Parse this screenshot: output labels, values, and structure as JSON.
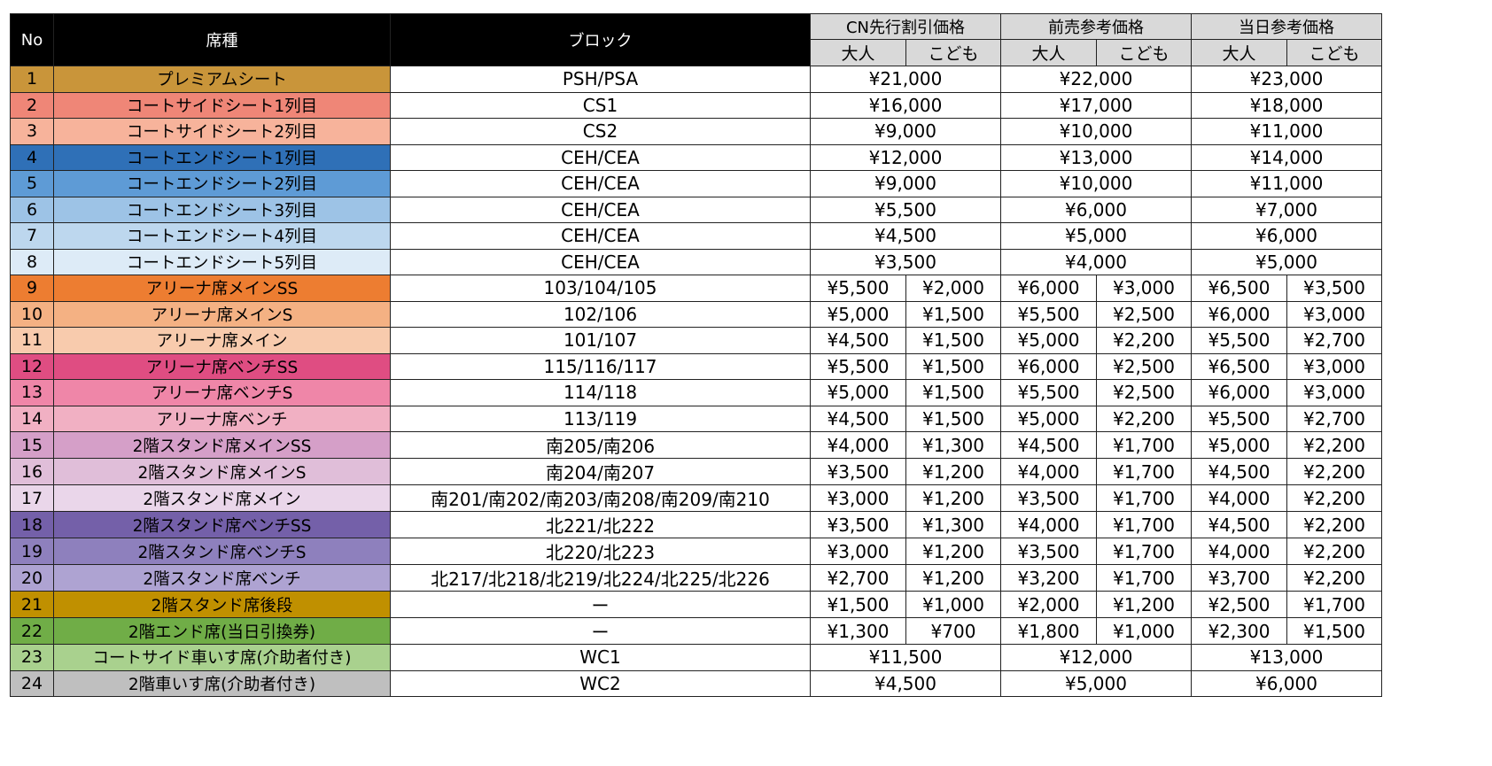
{
  "headers": {
    "no": "No",
    "seat": "席種",
    "block": "ブロック",
    "groups": [
      "CN先行割引価格",
      "前売参考価格",
      "当日参考価格"
    ],
    "adult": "大人",
    "child": "こども"
  },
  "rows": [
    {
      "no": "1",
      "seat": "プレミアムシート",
      "color": "#c9953a",
      "block": "PSH/PSA",
      "cn": {
        "price": "¥21,000"
      },
      "adv": {
        "price": "¥22,000"
      },
      "day": {
        "price": "¥23,000"
      }
    },
    {
      "no": "2",
      "seat": "コートサイドシート1列目",
      "color": "#ef8677",
      "block": "CS1",
      "cn": {
        "price": "¥16,000"
      },
      "adv": {
        "price": "¥17,000"
      },
      "day": {
        "price": "¥18,000"
      }
    },
    {
      "no": "3",
      "seat": "コートサイドシート2列目",
      "color": "#f7b39b",
      "block": "CS2",
      "cn": {
        "price": "¥9,000"
      },
      "adv": {
        "price": "¥10,000"
      },
      "day": {
        "price": "¥11,000"
      }
    },
    {
      "no": "4",
      "seat": "コートエンドシート1列目",
      "color": "#2f70b7",
      "block": "CEH/CEA",
      "cn": {
        "price": "¥12,000"
      },
      "adv": {
        "price": "¥13,000"
      },
      "day": {
        "price": "¥14,000"
      }
    },
    {
      "no": "5",
      "seat": "コートエンドシート2列目",
      "color": "#5e9bd6",
      "block": "CEH/CEA",
      "cn": {
        "price": "¥9,000"
      },
      "adv": {
        "price": "¥10,000"
      },
      "day": {
        "price": "¥11,000"
      }
    },
    {
      "no": "6",
      "seat": "コートエンドシート3列目",
      "color": "#9dc3e6",
      "block": "CEH/CEA",
      "cn": {
        "price": "¥5,500"
      },
      "adv": {
        "price": "¥6,000"
      },
      "day": {
        "price": "¥7,000"
      }
    },
    {
      "no": "7",
      "seat": "コートエンドシート4列目",
      "color": "#bdd7ee",
      "block": "CEH/CEA",
      "cn": {
        "price": "¥4,500"
      },
      "adv": {
        "price": "¥5,000"
      },
      "day": {
        "price": "¥6,000"
      }
    },
    {
      "no": "8",
      "seat": "コートエンドシート5列目",
      "color": "#ddebf7",
      "block": "CEH/CEA",
      "cn": {
        "price": "¥3,500"
      },
      "adv": {
        "price": "¥4,000"
      },
      "day": {
        "price": "¥5,000"
      }
    },
    {
      "no": "9",
      "seat": "アリーナ席メインSS",
      "color": "#ed7d31",
      "block": "103/104/105",
      "cn": {
        "adult": "¥5,500",
        "child": "¥2,000"
      },
      "adv": {
        "adult": "¥6,000",
        "child": "¥3,000"
      },
      "day": {
        "adult": "¥6,500",
        "child": "¥3,500"
      }
    },
    {
      "no": "10",
      "seat": "アリーナ席メインS",
      "color": "#f4b183",
      "block": "102/106",
      "cn": {
        "adult": "¥5,000",
        "child": "¥1,500"
      },
      "adv": {
        "adult": "¥5,500",
        "child": "¥2,500"
      },
      "day": {
        "adult": "¥6,000",
        "child": "¥3,000"
      }
    },
    {
      "no": "11",
      "seat": "アリーナ席メイン",
      "color": "#f8cbad",
      "block": "101/107",
      "cn": {
        "adult": "¥4,500",
        "child": "¥1,500"
      },
      "adv": {
        "adult": "¥5,000",
        "child": "¥2,200"
      },
      "day": {
        "adult": "¥5,500",
        "child": "¥2,700"
      }
    },
    {
      "no": "12",
      "seat": "アリーナ席ベンチSS",
      "color": "#df4d82",
      "block": "115/116/117",
      "cn": {
        "adult": "¥5,500",
        "child": "¥1,500"
      },
      "adv": {
        "adult": "¥6,000",
        "child": "¥2,500"
      },
      "day": {
        "adult": "¥6,500",
        "child": "¥3,000"
      }
    },
    {
      "no": "13",
      "seat": "アリーナ席ベンチS",
      "color": "#ef86a8",
      "block": "114/118",
      "cn": {
        "adult": "¥5,000",
        "child": "¥1,500"
      },
      "adv": {
        "adult": "¥5,500",
        "child": "¥2,500"
      },
      "day": {
        "adult": "¥6,000",
        "child": "¥3,000"
      }
    },
    {
      "no": "14",
      "seat": "アリーナ席ベンチ",
      "color": "#f1b0c3",
      "block": "113/119",
      "cn": {
        "adult": "¥4,500",
        "child": "¥1,500"
      },
      "adv": {
        "adult": "¥5,000",
        "child": "¥2,200"
      },
      "day": {
        "adult": "¥5,500",
        "child": "¥2,700"
      }
    },
    {
      "no": "15",
      "seat": "2階スタンド席メインSS",
      "color": "#d59fc8",
      "block": "南205/南206",
      "cn": {
        "adult": "¥4,000",
        "child": "¥1,300"
      },
      "adv": {
        "adult": "¥4,500",
        "child": "¥1,700"
      },
      "day": {
        "adult": "¥5,000",
        "child": "¥2,200"
      }
    },
    {
      "no": "16",
      "seat": "2階スタンド席メインS",
      "color": "#e0bed9",
      "block": "南204/南207",
      "cn": {
        "adult": "¥3,500",
        "child": "¥1,200"
      },
      "adv": {
        "adult": "¥4,000",
        "child": "¥1,700"
      },
      "day": {
        "adult": "¥4,500",
        "child": "¥2,200"
      }
    },
    {
      "no": "17",
      "seat": "2階スタンド席メイン",
      "color": "#ead6ea",
      "block": "南201/南202/南203/南208/南209/南210",
      "cn": {
        "adult": "¥3,000",
        "child": "¥1,200"
      },
      "adv": {
        "adult": "¥3,500",
        "child": "¥1,700"
      },
      "day": {
        "adult": "¥4,000",
        "child": "¥2,200"
      }
    },
    {
      "no": "18",
      "seat": "2階スタンド席ベンチSS",
      "color": "#7460a9",
      "block": "北221/北222",
      "cn": {
        "adult": "¥3,500",
        "child": "¥1,300"
      },
      "adv": {
        "adult": "¥4,000",
        "child": "¥1,700"
      },
      "day": {
        "adult": "¥4,500",
        "child": "¥2,200"
      }
    },
    {
      "no": "19",
      "seat": "2階スタンド席ベンチS",
      "color": "#8e80bd",
      "block": "北220/北223",
      "cn": {
        "adult": "¥3,000",
        "child": "¥1,200"
      },
      "adv": {
        "adult": "¥3,500",
        "child": "¥1,700"
      },
      "day": {
        "adult": "¥4,000",
        "child": "¥2,200"
      }
    },
    {
      "no": "20",
      "seat": "2階スタンド席ベンチ",
      "color": "#aea3d2",
      "block": "北217/北218/北219/北224/北225/北226",
      "cn": {
        "adult": "¥2,700",
        "child": "¥1,200"
      },
      "adv": {
        "adult": "¥3,200",
        "child": "¥1,700"
      },
      "day": {
        "adult": "¥3,700",
        "child": "¥2,200"
      }
    },
    {
      "no": "21",
      "seat": "2階スタンド席後段",
      "color": "#c09000",
      "block": "ー",
      "cn": {
        "adult": "¥1,500",
        "child": "¥1,000"
      },
      "adv": {
        "adult": "¥2,000",
        "child": "¥1,200"
      },
      "day": {
        "adult": "¥2,500",
        "child": "¥1,700"
      }
    },
    {
      "no": "22",
      "seat": "2階エンド席(当日引換券)",
      "color": "#70ad47",
      "block": "ー",
      "cn": {
        "adult": "¥1,300",
        "child": "¥700"
      },
      "adv": {
        "adult": "¥1,800",
        "child": "¥1,000"
      },
      "day": {
        "adult": "¥2,300",
        "child": "¥1,500"
      }
    },
    {
      "no": "23",
      "seat": "コートサイド車いす席(介助者付き)",
      "color": "#a9d18e",
      "block": "WC1",
      "cn": {
        "price": "¥11,500"
      },
      "adv": {
        "price": "¥12,000"
      },
      "day": {
        "price": "¥13,000"
      }
    },
    {
      "no": "24",
      "seat": "2階車いす席(介助者付き)",
      "color": "#bfbfbf",
      "block": "WC2",
      "cn": {
        "price": "¥4,500"
      },
      "adv": {
        "price": "¥5,000"
      },
      "day": {
        "price": "¥6,000"
      }
    }
  ]
}
